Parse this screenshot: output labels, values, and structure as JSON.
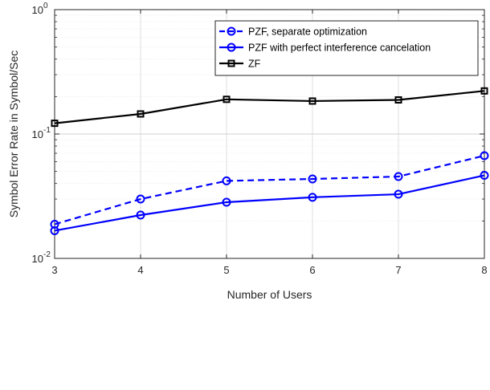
{
  "chart_data": {
    "type": "line",
    "xlabel": "Number of Users",
    "ylabel": "Symbol Error Rate in Symbol/Sec",
    "x": [
      3,
      4,
      5,
      6,
      7,
      8
    ],
    "xlim": [
      3,
      8
    ],
    "ylim": [
      0.01,
      1
    ],
    "yscale": "log",
    "grid": true,
    "minor_grid": true,
    "legend_position": "top-right",
    "x_ticks": [
      "3",
      "4",
      "5",
      "6",
      "7",
      "8"
    ],
    "y_ticks": [
      {
        "base": "10",
        "exp": "-2",
        "value": 0.01
      },
      {
        "base": "10",
        "exp": "-1",
        "value": 0.1
      },
      {
        "base": "10",
        "exp": "0",
        "value": 1
      }
    ],
    "series": [
      {
        "name": "PZF, separate optimization",
        "values": [
          0.0188,
          0.03,
          0.042,
          0.0435,
          0.0455,
          0.067
        ],
        "color": "#0000ff",
        "line_style": "dashed",
        "marker": "circle"
      },
      {
        "name": "PZF with perfect interference cancelation",
        "values": [
          0.0167,
          0.0223,
          0.0283,
          0.031,
          0.0328,
          0.0465
        ],
        "color": "#0000ff",
        "line_style": "solid",
        "marker": "circle"
      },
      {
        "name": "ZF",
        "values": [
          0.122,
          0.145,
          0.19,
          0.184,
          0.188,
          0.222
        ],
        "color": "#000000",
        "line_style": "solid",
        "marker": "square"
      }
    ]
  }
}
